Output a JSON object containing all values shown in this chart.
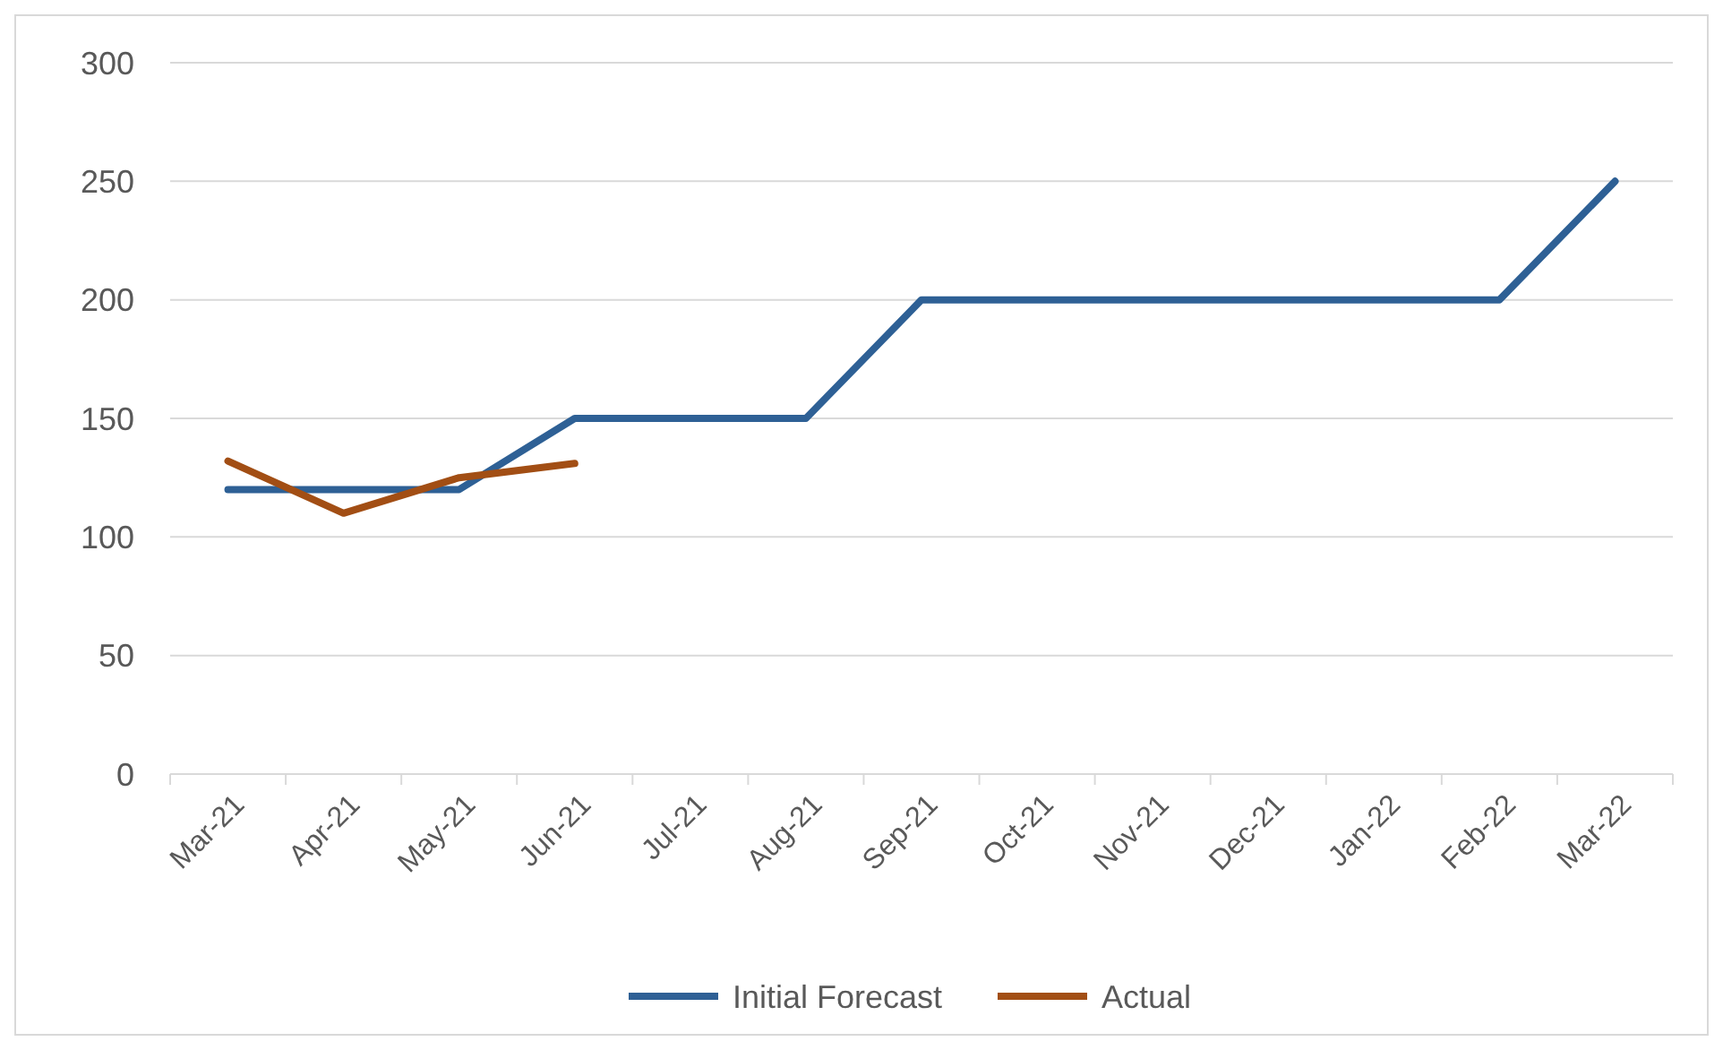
{
  "chart_data": {
    "type": "line",
    "categories": [
      "Mar-21",
      "Apr-21",
      "May-21",
      "Jun-21",
      "Jul-21",
      "Aug-21",
      "Sep-21",
      "Oct-21",
      "Nov-21",
      "Dec-21",
      "Jan-22",
      "Feb-22",
      "Mar-22"
    ],
    "series": [
      {
        "name": "Initial Forecast",
        "color": "#2e6095",
        "values": [
          120,
          120,
          120,
          150,
          150,
          150,
          200,
          200,
          200,
          200,
          200,
          200,
          250
        ]
      },
      {
        "name": "Actual",
        "color": "#a24e14",
        "values": [
          132,
          110,
          125,
          131,
          null,
          null,
          null,
          null,
          null,
          null,
          null,
          null,
          null
        ]
      }
    ],
    "ylim": [
      0,
      300
    ],
    "yticks": [
      0,
      50,
      100,
      150,
      200,
      250,
      300
    ],
    "grid": "y",
    "legend": "bottom",
    "marker": "none",
    "line_style": "solid"
  }
}
